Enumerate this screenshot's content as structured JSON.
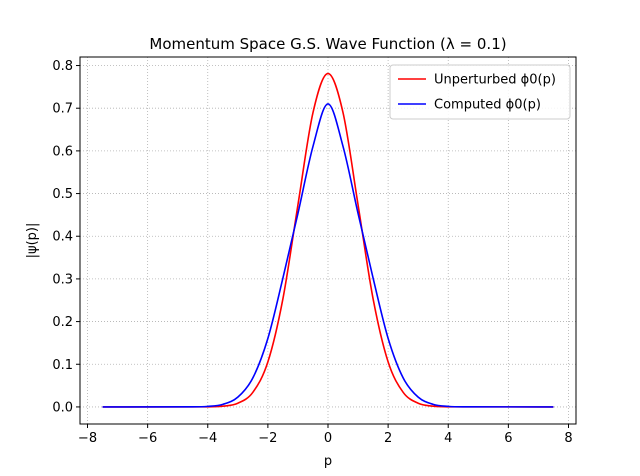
{
  "chart_data": {
    "type": "line",
    "title": "Momentum Space G.S. Wave Function (λ = 0.1)",
    "xlabel": "p",
    "ylabel": "|ψ(p)|",
    "xlim": [
      -8.25,
      8.25
    ],
    "ylim": [
      -0.04,
      0.82
    ],
    "xticks": [
      -8,
      -6,
      -4,
      -2,
      0,
      2,
      4,
      6,
      8
    ],
    "xtick_labels": [
      "−8",
      "−6",
      "−4",
      "−2",
      "0",
      "2",
      "4",
      "6",
      "8"
    ],
    "yticks": [
      0.0,
      0.1,
      0.2,
      0.3,
      0.4,
      0.5,
      0.6,
      0.7,
      0.8
    ],
    "ytick_labels": [
      "0.0",
      "0.1",
      "0.2",
      "0.3",
      "0.4",
      "0.5",
      "0.6",
      "0.7",
      "0.8"
    ],
    "grid": true,
    "legend_position": "top-right",
    "series": [
      {
        "name": "Unperturbed ϕ0(p)",
        "color": "#ff0000",
        "x": [
          -7.5,
          -4.0,
          -3.5,
          -3.0,
          -2.5,
          -2.0,
          -1.5,
          -1.0,
          -0.5,
          0.0,
          0.5,
          1.0,
          1.5,
          2.0,
          2.5,
          3.0,
          3.5,
          4.0,
          7.5
        ],
        "y": [
          0.0,
          0.0003,
          0.0017,
          0.0087,
          0.0343,
          0.1055,
          0.2534,
          0.4736,
          0.6894,
          0.7812,
          0.6894,
          0.4736,
          0.2534,
          0.1055,
          0.0343,
          0.0087,
          0.0017,
          0.0003,
          0.0
        ]
      },
      {
        "name": "Computed ϕ0(p)",
        "color": "#0000ff",
        "x": [
          -7.5,
          -4.5,
          -4.0,
          -3.5,
          -3.0,
          -2.5,
          -2.0,
          -1.5,
          -1.0,
          -0.5,
          0.0,
          0.5,
          1.0,
          1.5,
          2.0,
          2.5,
          3.0,
          3.5,
          4.0,
          4.5,
          7.5
        ],
        "y": [
          0.0,
          0.0002,
          0.0013,
          0.0061,
          0.0229,
          0.068,
          0.1606,
          0.3019,
          0.4534,
          0.6104,
          0.71,
          0.6104,
          0.4534,
          0.3019,
          0.1606,
          0.068,
          0.0229,
          0.0061,
          0.0013,
          0.0002,
          0.0
        ]
      }
    ]
  }
}
